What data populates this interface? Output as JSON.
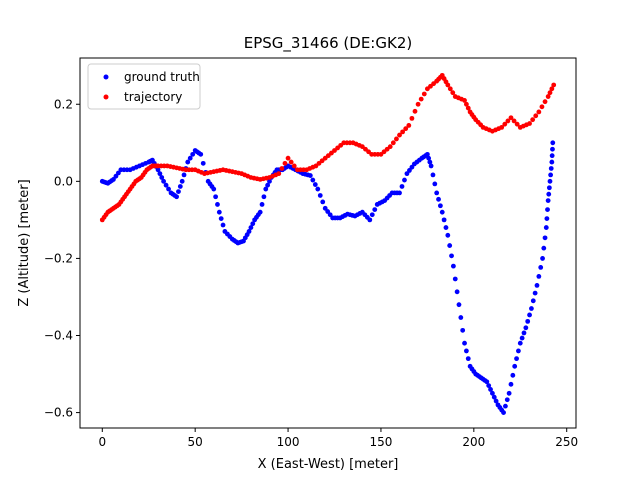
{
  "chart_data": {
    "type": "scatter",
    "title": "EPSG_31466 (DE:GK2)",
    "xlabel": "X (East-West) [meter]",
    "ylabel": "Z (Altitude) [meter]",
    "xlim": [
      -12,
      255
    ],
    "ylim": [
      -0.64,
      0.32
    ],
    "xticks": [
      0,
      50,
      100,
      150,
      200,
      250
    ],
    "yticks": [
      -0.6,
      -0.4,
      -0.2,
      0.0,
      0.2
    ],
    "xtick_labels": [
      "0",
      "50",
      "100",
      "150",
      "200",
      "250"
    ],
    "ytick_labels": [
      "−0.6",
      "−0.4",
      "−0.2",
      "0.0",
      "0.2"
    ],
    "grid": false,
    "legend_position": "top-left",
    "series": [
      {
        "name": "ground truth",
        "color": "#0000ff",
        "points": [
          [
            0,
            0.0
          ],
          [
            3,
            -0.005
          ],
          [
            6,
            0.005
          ],
          [
            10,
            0.03
          ],
          [
            15,
            0.03
          ],
          [
            20,
            0.04
          ],
          [
            25,
            0.05
          ],
          [
            27,
            0.055
          ],
          [
            30,
            0.03
          ],
          [
            33,
            0.0
          ],
          [
            37,
            -0.03
          ],
          [
            40,
            -0.04
          ],
          [
            43,
            0.0
          ],
          [
            46,
            0.05
          ],
          [
            50,
            0.08
          ],
          [
            53,
            0.07
          ],
          [
            57,
            0.0
          ],
          [
            60,
            -0.02
          ],
          [
            63,
            -0.08
          ],
          [
            66,
            -0.13
          ],
          [
            70,
            -0.15
          ],
          [
            73,
            -0.16
          ],
          [
            76,
            -0.155
          ],
          [
            79,
            -0.13
          ],
          [
            82,
            -0.1
          ],
          [
            85,
            -0.08
          ],
          [
            88,
            -0.02
          ],
          [
            91,
            0.01
          ],
          [
            94,
            0.03
          ],
          [
            97,
            0.03
          ],
          [
            100,
            0.04
          ],
          [
            104,
            0.03
          ],
          [
            108,
            0.02
          ],
          [
            112,
            0.015
          ],
          [
            116,
            -0.02
          ],
          [
            120,
            -0.07
          ],
          [
            124,
            -0.095
          ],
          [
            128,
            -0.095
          ],
          [
            132,
            -0.085
          ],
          [
            136,
            -0.09
          ],
          [
            140,
            -0.08
          ],
          [
            144,
            -0.1
          ],
          [
            148,
            -0.06
          ],
          [
            152,
            -0.05
          ],
          [
            156,
            -0.03
          ],
          [
            160,
            -0.03
          ],
          [
            164,
            0.02
          ],
          [
            168,
            0.045
          ],
          [
            172,
            0.06
          ],
          [
            175,
            0.07
          ],
          [
            177,
            0.04
          ],
          [
            180,
            -0.03
          ],
          [
            183,
            -0.08
          ],
          [
            186,
            -0.14
          ],
          [
            189,
            -0.22
          ],
          [
            192,
            -0.32
          ],
          [
            195,
            -0.42
          ],
          [
            198,
            -0.48
          ],
          [
            201,
            -0.5
          ],
          [
            204,
            -0.51
          ],
          [
            207,
            -0.52
          ],
          [
            210,
            -0.55
          ],
          [
            213,
            -0.58
          ],
          [
            216,
            -0.6
          ],
          [
            219,
            -0.55
          ],
          [
            222,
            -0.48
          ],
          [
            225,
            -0.42
          ],
          [
            228,
            -0.38
          ],
          [
            231,
            -0.33
          ],
          [
            234,
            -0.27
          ],
          [
            237,
            -0.2
          ],
          [
            239,
            -0.12
          ],
          [
            240,
            -0.05
          ],
          [
            241,
            0.0
          ],
          [
            242,
            0.05
          ],
          [
            242.5,
            0.1
          ]
        ]
      },
      {
        "name": "trajectory",
        "color": "#ff0000",
        "points": [
          [
            0,
            -0.1
          ],
          [
            3,
            -0.08
          ],
          [
            6,
            -0.07
          ],
          [
            9,
            -0.06
          ],
          [
            12,
            -0.04
          ],
          [
            15,
            -0.02
          ],
          [
            18,
            0.0
          ],
          [
            21,
            0.01
          ],
          [
            24,
            0.03
          ],
          [
            27,
            0.04
          ],
          [
            30,
            0.04
          ],
          [
            35,
            0.04
          ],
          [
            40,
            0.035
          ],
          [
            45,
            0.03
          ],
          [
            50,
            0.03
          ],
          [
            55,
            0.02
          ],
          [
            60,
            0.025
          ],
          [
            65,
            0.03
          ],
          [
            70,
            0.025
          ],
          [
            75,
            0.02
          ],
          [
            80,
            0.01
          ],
          [
            85,
            0.005
          ],
          [
            90,
            0.01
          ],
          [
            95,
            0.02
          ],
          [
            100,
            0.06
          ],
          [
            105,
            0.03
          ],
          [
            110,
            0.03
          ],
          [
            115,
            0.04
          ],
          [
            120,
            0.06
          ],
          [
            125,
            0.08
          ],
          [
            130,
            0.1
          ],
          [
            135,
            0.1
          ],
          [
            140,
            0.09
          ],
          [
            145,
            0.07
          ],
          [
            150,
            0.07
          ],
          [
            155,
            0.09
          ],
          [
            160,
            0.12
          ],
          [
            165,
            0.145
          ],
          [
            170,
            0.2
          ],
          [
            175,
            0.24
          ],
          [
            180,
            0.26
          ],
          [
            183,
            0.275
          ],
          [
            186,
            0.25
          ],
          [
            190,
            0.22
          ],
          [
            195,
            0.21
          ],
          [
            198,
            0.18
          ],
          [
            201,
            0.16
          ],
          [
            205,
            0.14
          ],
          [
            210,
            0.13
          ],
          [
            215,
            0.14
          ],
          [
            220,
            0.165
          ],
          [
            225,
            0.14
          ],
          [
            230,
            0.15
          ],
          [
            235,
            0.18
          ],
          [
            240,
            0.22
          ],
          [
            243,
            0.25
          ]
        ]
      }
    ]
  }
}
